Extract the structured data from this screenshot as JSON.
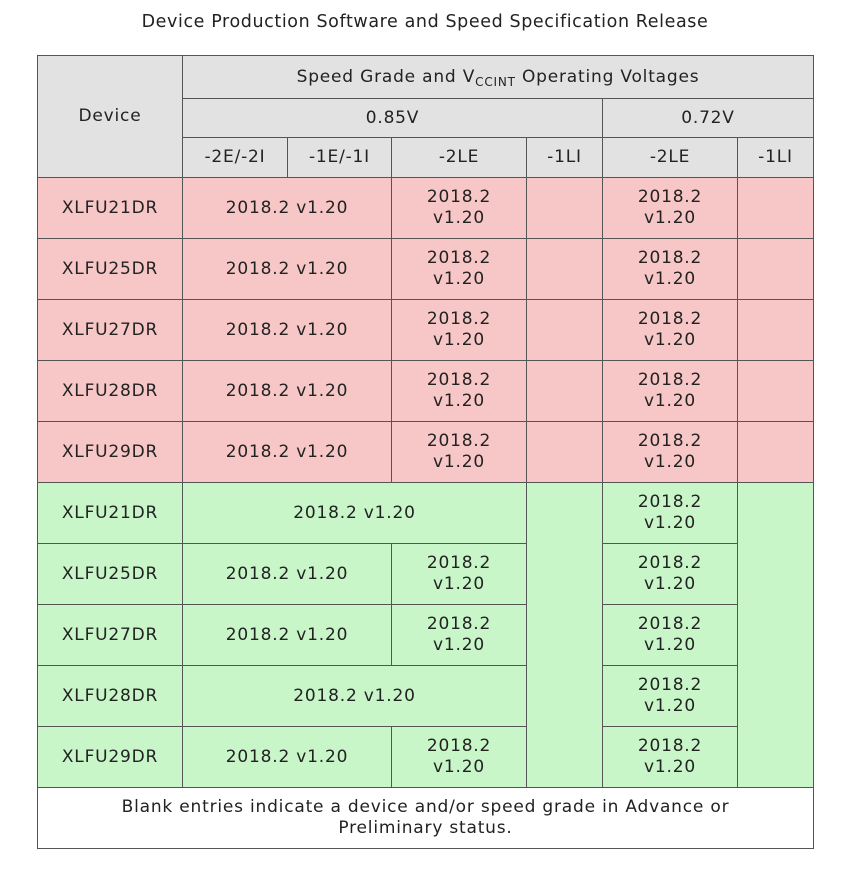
{
  "title": "Device Production Software and Speed Specification Release",
  "header": {
    "device": "Device",
    "group_main": "Speed Grade and V",
    "group_sub": "CCINT",
    "group_tail": " Operating Voltages",
    "voltage_085": "0.85V",
    "voltage_072": "0.72V",
    "grades": [
      "-2E/-2I",
      "-1E/-1I",
      "-2LE",
      "-1LI",
      "-2LE",
      "-1LI"
    ]
  },
  "colors": {
    "header": "#e2e2e2",
    "red_rows": "#f7c6c6",
    "green_rows": "#c8f6c8",
    "border": "#555555"
  },
  "red_rows": [
    {
      "device": "XLFU21DR",
      "span_2e_1e": "2018.2 v1.20",
      "lv_2le_1": "2018.2",
      "lv_2le_2": "v1.20",
      "v072_2le_1": "2018.2",
      "v072_2le_2": "v1.20"
    },
    {
      "device": "XLFU25DR",
      "span_2e_1e": "2018.2 v1.20",
      "lv_2le_1": "2018.2",
      "lv_2le_2": "v1.20",
      "v072_2le_1": "2018.2",
      "v072_2le_2": "v1.20"
    },
    {
      "device": "XLFU27DR",
      "span_2e_1e": "2018.2 v1.20",
      "lv_2le_1": "2018.2",
      "lv_2le_2": "v1.20",
      "v072_2le_1": "2018.2",
      "v072_2le_2": "v1.20"
    },
    {
      "device": "XLFU28DR",
      "span_2e_1e": "2018.2 v1.20",
      "lv_2le_1": "2018.2",
      "lv_2le_2": "v1.20",
      "v072_2le_1": "2018.2",
      "v072_2le_2": "v1.20"
    },
    {
      "device": "XLFU29DR",
      "span_2e_1e": "2018.2 v1.20",
      "lv_2le_1": "2018.2",
      "lv_2le_2": "v1.20",
      "v072_2le_1": "2018.2",
      "v072_2le_2": "v1.20"
    }
  ],
  "green_rows": [
    {
      "device": "XLFU21DR",
      "span_wide": "2018.2 v1.20",
      "v072_2le_1": "2018.2",
      "v072_2le_2": "v1.20"
    },
    {
      "device": "XLFU25DR",
      "span_2e_1e": "2018.2 v1.20",
      "lv_2le_1": "2018.2",
      "lv_2le_2": "v1.20",
      "v072_2le_1": "2018.2",
      "v072_2le_2": "v1.20"
    },
    {
      "device": "XLFU27DR",
      "span_2e_1e": "2018.2 v1.20",
      "lv_2le_1": "2018.2",
      "lv_2le_2": "v1.20",
      "v072_2le_1": "2018.2",
      "v072_2le_2": "v1.20"
    },
    {
      "device": "XLFU28DR",
      "span_wide": "2018.2 v1.20",
      "v072_2le_1": "2018.2",
      "v072_2le_2": "v1.20"
    },
    {
      "device": "XLFU29DR",
      "span_2e_1e": "2018.2 v1.20",
      "lv_2le_1": "2018.2",
      "lv_2le_2": "v1.20",
      "v072_2le_1": "2018.2",
      "v072_2le_2": "v1.20"
    }
  ],
  "footnote_line1": "Blank entries indicate a device and/or speed grade in Advance or",
  "footnote_line2": "Preliminary status."
}
